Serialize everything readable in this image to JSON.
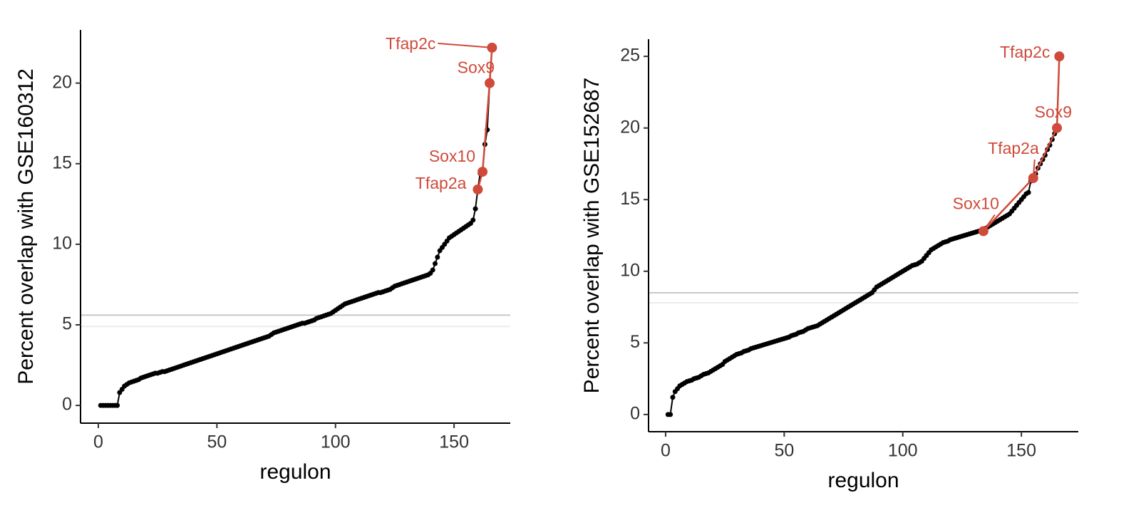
{
  "chart_data": [
    {
      "type": "line",
      "xlabel": "regulon",
      "ylabel": "Percent overlap with GSE160312",
      "xlim": [
        -7.5,
        173.7
      ],
      "ylim": [
        -1.1,
        23.3
      ],
      "xticks": [
        0,
        50,
        100,
        150
      ],
      "yticks": [
        0,
        5,
        10,
        15,
        20
      ],
      "reference_lines": [
        {
          "value": 5.6,
          "color": "#c8c8c8"
        },
        {
          "value": 4.9,
          "color": "#ececec"
        }
      ],
      "series": [
        {
          "color": "#000000",
          "x": [
            1,
            2,
            3,
            4,
            5,
            6,
            7,
            8,
            9,
            10,
            11,
            12,
            13,
            14,
            15,
            16,
            17,
            18,
            19,
            20,
            21,
            22,
            23,
            24,
            25,
            26,
            27,
            28,
            29,
            30,
            31,
            32,
            33,
            34,
            35,
            36,
            37,
            38,
            39,
            40,
            41,
            42,
            43,
            44,
            45,
            46,
            47,
            48,
            49,
            50,
            51,
            52,
            53,
            54,
            55,
            56,
            57,
            58,
            59,
            60,
            61,
            62,
            63,
            64,
            65,
            66,
            67,
            68,
            69,
            70,
            71,
            72,
            73,
            74,
            75,
            76,
            77,
            78,
            79,
            80,
            81,
            82,
            83,
            84,
            85,
            86,
            87,
            88,
            89,
            90,
            91,
            92,
            93,
            94,
            95,
            96,
            97,
            98,
            99,
            100,
            101,
            102,
            103,
            104,
            105,
            106,
            107,
            108,
            109,
            110,
            111,
            112,
            113,
            114,
            115,
            116,
            117,
            118,
            119,
            120,
            121,
            122,
            123,
            124,
            125,
            126,
            127,
            128,
            129,
            130,
            131,
            132,
            133,
            134,
            135,
            136,
            137,
            138,
            139,
            140,
            141,
            142,
            143,
            144,
            145,
            146,
            147,
            148,
            149,
            150,
            151,
            152,
            153,
            154,
            155,
            156,
            157,
            158,
            159,
            160,
            161,
            162,
            163,
            164,
            165,
            166
          ],
          "values": [
            0,
            0,
            0,
            0,
            0,
            0,
            0,
            0,
            0.8,
            1.0,
            1.2,
            1.3,
            1.4,
            1.45,
            1.5,
            1.55,
            1.6,
            1.7,
            1.75,
            1.8,
            1.85,
            1.9,
            1.95,
            2.0,
            2.0,
            2.05,
            2.1,
            2.1,
            2.15,
            2.2,
            2.25,
            2.3,
            2.35,
            2.4,
            2.45,
            2.5,
            2.55,
            2.6,
            2.65,
            2.7,
            2.75,
            2.8,
            2.85,
            2.9,
            2.95,
            3.0,
            3.05,
            3.1,
            3.15,
            3.2,
            3.25,
            3.3,
            3.35,
            3.4,
            3.45,
            3.5,
            3.55,
            3.6,
            3.65,
            3.7,
            3.75,
            3.8,
            3.85,
            3.9,
            3.95,
            4.0,
            4.05,
            4.1,
            4.15,
            4.2,
            4.25,
            4.3,
            4.4,
            4.5,
            4.55,
            4.6,
            4.65,
            4.7,
            4.75,
            4.8,
            4.85,
            4.9,
            4.95,
            5.0,
            5.05,
            5.1,
            5.1,
            5.15,
            5.2,
            5.25,
            5.3,
            5.4,
            5.45,
            5.5,
            5.55,
            5.6,
            5.65,
            5.7,
            5.8,
            5.9,
            6.0,
            6.1,
            6.2,
            6.3,
            6.35,
            6.4,
            6.45,
            6.5,
            6.55,
            6.6,
            6.65,
            6.7,
            6.75,
            6.8,
            6.85,
            6.9,
            6.95,
            7.0,
            7.0,
            7.05,
            7.1,
            7.15,
            7.2,
            7.3,
            7.4,
            7.45,
            7.5,
            7.55,
            7.6,
            7.65,
            7.7,
            7.75,
            7.8,
            7.85,
            7.9,
            7.95,
            8.0,
            8.05,
            8.1,
            8.2,
            8.4,
            8.8,
            9.2,
            9.6,
            9.8,
            10.0,
            10.2,
            10.4,
            10.5,
            10.6,
            10.7,
            10.8,
            10.9,
            11.0,
            11.1,
            11.2,
            11.3,
            11.5,
            12.2,
            13.4,
            14.4,
            14.5,
            16.2,
            17.1,
            20.0,
            22.2
          ]
        },
        {
          "color": "#cf4a3a",
          "x": [
            160,
            162,
            165,
            166
          ],
          "values": [
            13.4,
            14.5,
            20.0,
            22.2
          ],
          "labels": [
            "Tfap2a",
            "Sox10",
            "Sox9",
            "Tfap2c"
          ]
        }
      ]
    },
    {
      "type": "line",
      "xlabel": "regulon",
      "ylabel": "Percent overlap with GSE152687",
      "xlim": [
        -7.2,
        174
      ],
      "ylim": [
        -1.2,
        26.2
      ],
      "xticks": [
        0,
        50,
        100,
        150
      ],
      "yticks": [
        0,
        5,
        10,
        15,
        20,
        25
      ],
      "reference_lines": [
        {
          "value": 8.5,
          "color": "#c8c8c8"
        },
        {
          "value": 7.8,
          "color": "#ececec"
        }
      ],
      "series": [
        {
          "color": "#000000",
          "x": [
            1,
            2,
            3,
            4,
            5,
            6,
            7,
            8,
            9,
            10,
            11,
            12,
            13,
            14,
            15,
            16,
            17,
            18,
            19,
            20,
            21,
            22,
            23,
            24,
            25,
            26,
            27,
            28,
            29,
            30,
            31,
            32,
            33,
            34,
            35,
            36,
            37,
            38,
            39,
            40,
            41,
            42,
            43,
            44,
            45,
            46,
            47,
            48,
            49,
            50,
            51,
            52,
            53,
            54,
            55,
            56,
            57,
            58,
            59,
            60,
            61,
            62,
            63,
            64,
            65,
            66,
            67,
            68,
            69,
            70,
            71,
            72,
            73,
            74,
            75,
            76,
            77,
            78,
            79,
            80,
            81,
            82,
            83,
            84,
            85,
            86,
            87,
            88,
            89,
            90,
            91,
            92,
            93,
            94,
            95,
            96,
            97,
            98,
            99,
            100,
            101,
            102,
            103,
            104,
            105,
            106,
            107,
            108,
            109,
            110,
            111,
            112,
            113,
            114,
            115,
            116,
            117,
            118,
            119,
            120,
            121,
            122,
            123,
            124,
            125,
            126,
            127,
            128,
            129,
            130,
            131,
            132,
            133,
            134,
            135,
            136,
            137,
            138,
            139,
            140,
            141,
            142,
            143,
            144,
            145,
            146,
            147,
            148,
            149,
            150,
            151,
            152,
            153,
            154,
            155,
            156,
            157,
            158,
            159,
            160,
            161,
            162,
            163,
            164,
            165,
            166
          ],
          "values": [
            0,
            0,
            1.2,
            1.6,
            1.8,
            2.0,
            2.1,
            2.2,
            2.3,
            2.35,
            2.4,
            2.5,
            2.55,
            2.6,
            2.7,
            2.8,
            2.85,
            2.9,
            3.0,
            3.1,
            3.2,
            3.3,
            3.4,
            3.5,
            3.7,
            3.8,
            3.9,
            4.0,
            4.1,
            4.2,
            4.25,
            4.3,
            4.4,
            4.45,
            4.5,
            4.6,
            4.65,
            4.7,
            4.75,
            4.8,
            4.85,
            4.9,
            4.95,
            5.0,
            5.05,
            5.1,
            5.15,
            5.2,
            5.25,
            5.3,
            5.35,
            5.4,
            5.5,
            5.55,
            5.6,
            5.7,
            5.75,
            5.8,
            5.9,
            6.0,
            6.05,
            6.1,
            6.15,
            6.2,
            6.3,
            6.4,
            6.5,
            6.6,
            6.7,
            6.8,
            6.9,
            7.0,
            7.1,
            7.2,
            7.3,
            7.4,
            7.5,
            7.6,
            7.7,
            7.8,
            7.9,
            8.0,
            8.1,
            8.2,
            8.3,
            8.4,
            8.5,
            8.7,
            8.9,
            9.0,
            9.1,
            9.2,
            9.3,
            9.4,
            9.5,
            9.6,
            9.7,
            9.8,
            9.9,
            10.0,
            10.1,
            10.2,
            10.3,
            10.4,
            10.45,
            10.5,
            10.6,
            10.7,
            10.9,
            11.1,
            11.3,
            11.5,
            11.6,
            11.7,
            11.8,
            11.9,
            12.0,
            12.05,
            12.1,
            12.2,
            12.25,
            12.3,
            12.35,
            12.4,
            12.45,
            12.5,
            12.55,
            12.6,
            12.65,
            12.7,
            12.75,
            12.8,
            12.85,
            12.8,
            13.0,
            13.1,
            13.2,
            13.3,
            13.4,
            13.5,
            13.6,
            13.7,
            13.8,
            13.9,
            14.0,
            14.2,
            14.4,
            14.6,
            14.8,
            15.0,
            15.2,
            15.4,
            15.5,
            16.3,
            16.5,
            16.8,
            17.2,
            17.5,
            17.8,
            18.1,
            18.5,
            18.8,
            19.2,
            19.6,
            20.0,
            25.0
          ]
        },
        {
          "color": "#cf4a3a",
          "x": [
            134,
            155,
            165,
            166
          ],
          "values": [
            12.8,
            16.5,
            20.0,
            25.0
          ],
          "labels": [
            "Sox10",
            "Tfap2a",
            "Sox9",
            "Tfap2c"
          ]
        }
      ]
    }
  ]
}
